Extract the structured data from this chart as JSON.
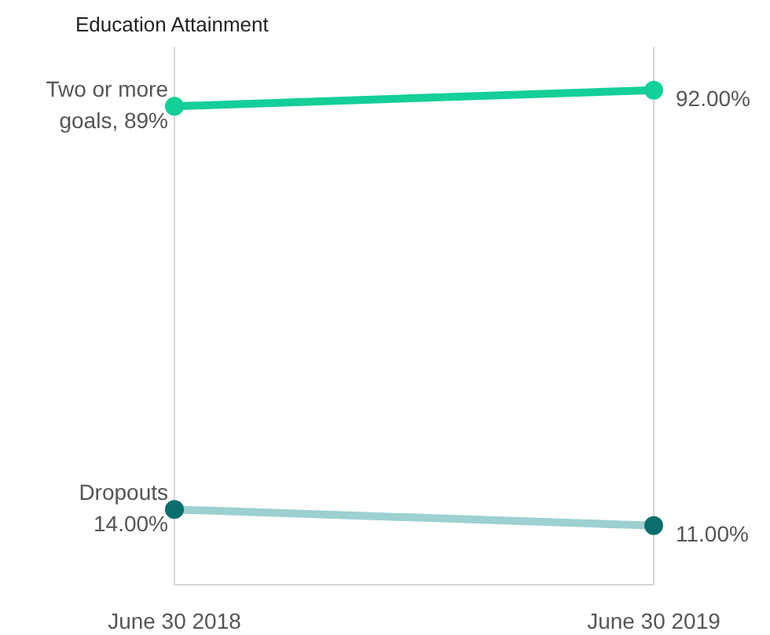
{
  "chart_data": {
    "type": "line",
    "title": "Education Attainment",
    "categories": [
      "June 30 2018",
      "June 30 2019"
    ],
    "ylim": [
      0,
      100
    ],
    "grid": "x",
    "marker": "circle",
    "tick_labels": "x",
    "series": [
      {
        "color": "#14cf98",
        "colors": [
          "#14cf98",
          "#14cf98"
        ],
        "values": [
          89,
          92
        ],
        "value_labels": [
          "Two or more goals, 89%",
          "92.00%"
        ]
      },
      {
        "color": "#9dd0d0",
        "colors": [
          "#0d6e6e",
          "#0d6e6e"
        ],
        "values": [
          14,
          11
        ],
        "value_labels": [
          "Dropouts 14.00%",
          "11.00%"
        ]
      }
    ]
  }
}
